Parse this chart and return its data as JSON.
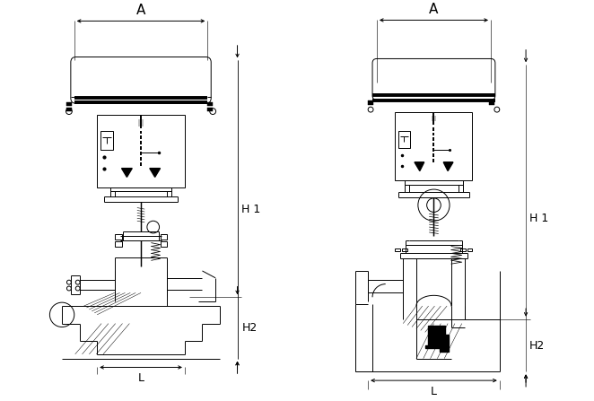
{
  "bg_color": "#ffffff",
  "line_color": "#000000",
  "fig_width": 6.62,
  "fig_height": 4.47,
  "dpi": 100,
  "label_A": "A",
  "label_H1": "H 1",
  "label_H2": "H2",
  "label_L": "L",
  "lw": 0.7,
  "tlw": 2.8
}
